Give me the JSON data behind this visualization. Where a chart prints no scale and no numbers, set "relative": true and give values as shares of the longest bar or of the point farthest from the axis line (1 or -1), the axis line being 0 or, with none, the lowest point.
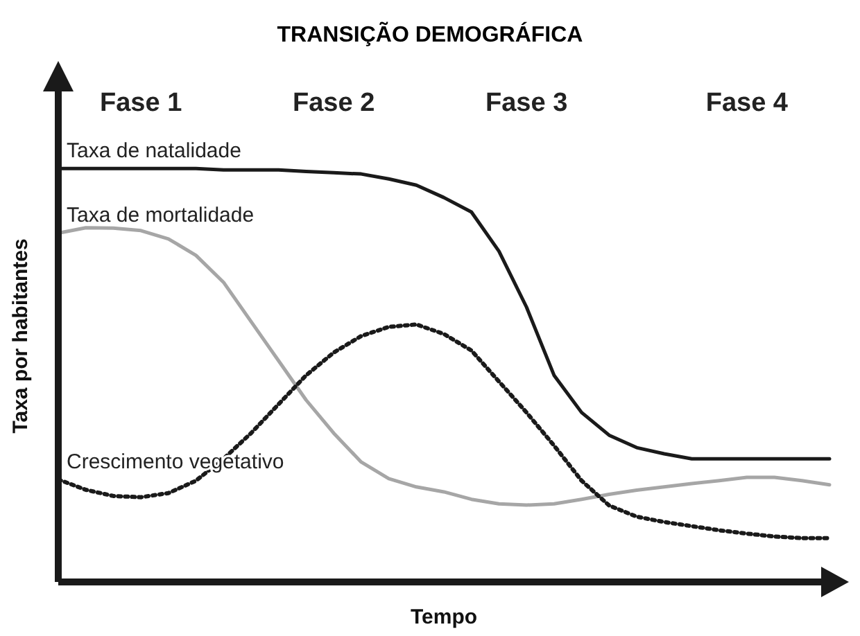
{
  "chart_data": {
    "type": "line",
    "title": "TRANSIÇÃO DEMOGRÁFICA",
    "xlabel": "Tempo",
    "ylabel": "Taxa por habitantes",
    "relative": true,
    "marker": "none",
    "categories": [
      null,
      null,
      null,
      "Fase 1",
      null,
      null,
      null,
      null,
      null,
      null,
      "Fase 2",
      null,
      null,
      null,
      null,
      null,
      null,
      "Fase 3",
      null,
      null,
      null,
      null,
      null,
      null,
      null,
      "Fase 4",
      null,
      null,
      null
    ],
    "series": [
      {
        "name": "Taxa de natalidade",
        "color": "#1a1a1a",
        "line_style": "solid",
        "values": [
          1.0,
          1.0,
          1.0,
          1.0,
          1.0,
          1.0,
          0.997,
          0.997,
          0.997,
          0.993,
          0.99,
          0.987,
          0.975,
          0.96,
          0.93,
          0.895,
          0.8,
          0.665,
          0.5,
          0.41,
          0.355,
          0.325,
          0.31,
          0.298,
          0.298,
          0.298,
          0.298,
          0.298,
          0.298
        ]
      },
      {
        "name": "Taxa de mortalidade",
        "color": "#a6a6a6",
        "line_style": "solid",
        "values": [
          0.844,
          0.857,
          0.856,
          0.85,
          0.83,
          0.79,
          0.725,
          0.63,
          0.535,
          0.44,
          0.36,
          0.29,
          0.25,
          0.23,
          0.218,
          0.2,
          0.189,
          0.186,
          0.189,
          0.2,
          0.212,
          0.222,
          0.23,
          0.238,
          0.245,
          0.253,
          0.253,
          0.245,
          0.235
        ]
      },
      {
        "name": "Crescimento vegetativo",
        "color": "#1a1a1a",
        "line_style": "dotted",
        "values": [
          0.248,
          0.223,
          0.208,
          0.205,
          0.215,
          0.245,
          0.298,
          0.36,
          0.43,
          0.5,
          0.555,
          0.595,
          0.617,
          0.623,
          0.6,
          0.56,
          0.485,
          0.41,
          0.33,
          0.245,
          0.185,
          0.158,
          0.145,
          0.135,
          0.125,
          0.117,
          0.11,
          0.106,
          0.106
        ]
      }
    ]
  }
}
